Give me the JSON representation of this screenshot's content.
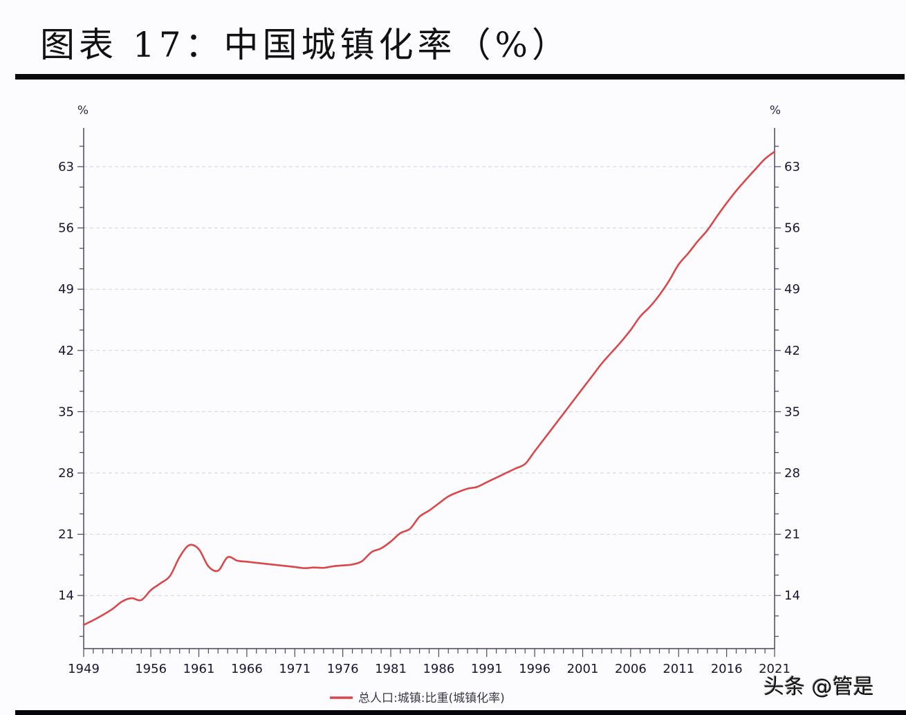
{
  "header": {
    "title": "图表 17：中国城镇化率（%）"
  },
  "watermark": "头条 @管是",
  "chart_data": {
    "type": "line",
    "title": "图表 17：中国城镇化率（%）",
    "xlabel": "",
    "ylabel_left": "%",
    "ylabel_right": "%",
    "ylim": [
      7.3,
      66.8
    ],
    "xlim": [
      1949,
      2021
    ],
    "y_ticks": [
      14,
      21,
      28,
      35,
      42,
      49,
      56,
      63
    ],
    "y_minor_step": 2.333,
    "x_tick_labels": [
      "1949",
      "1956",
      "1961",
      "1966",
      "1971",
      "1976",
      "1981",
      "1986",
      "1991",
      "1996",
      "2001",
      "2006",
      "2011",
      "2016",
      "2021"
    ],
    "grid": "horizontal dashed at major y ticks",
    "legend_position": "bottom-center",
    "line_color": "#d9474a",
    "series": [
      {
        "name": "总人口:城镇:比重(城镇化率)",
        "x": [
          1949,
          1950,
          1951,
          1952,
          1953,
          1954,
          1955,
          1956,
          1957,
          1958,
          1959,
          1960,
          1961,
          1962,
          1963,
          1964,
          1965,
          1966,
          1967,
          1968,
          1969,
          1970,
          1971,
          1972,
          1973,
          1974,
          1975,
          1976,
          1977,
          1978,
          1979,
          1980,
          1981,
          1982,
          1983,
          1984,
          1985,
          1986,
          1987,
          1988,
          1989,
          1990,
          1991,
          1992,
          1993,
          1994,
          1995,
          1996,
          1997,
          1998,
          1999,
          2000,
          2001,
          2002,
          2003,
          2004,
          2005,
          2006,
          2007,
          2008,
          2009,
          2010,
          2011,
          2012,
          2013,
          2014,
          2015,
          2016,
          2017,
          2018,
          2019,
          2020,
          2021
        ],
        "values": [
          10.64,
          11.18,
          11.78,
          12.46,
          13.31,
          13.69,
          13.48,
          14.62,
          15.39,
          16.25,
          18.41,
          19.75,
          19.29,
          17.33,
          16.84,
          18.37,
          17.98,
          17.86,
          17.74,
          17.62,
          17.5,
          17.38,
          17.26,
          17.13,
          17.2,
          17.16,
          17.34,
          17.44,
          17.55,
          17.92,
          18.96,
          19.39,
          20.16,
          21.13,
          21.62,
          23.01,
          23.71,
          24.52,
          25.32,
          25.81,
          26.21,
          26.41,
          26.94,
          27.46,
          27.99,
          28.51,
          29.04,
          30.48,
          31.91,
          33.35,
          34.78,
          36.22,
          37.66,
          39.09,
          40.53,
          41.76,
          42.99,
          44.34,
          45.89,
          46.99,
          48.34,
          49.95,
          51.83,
          53.1,
          54.49,
          55.75,
          57.33,
          58.84,
          60.24,
          61.5,
          62.71,
          63.89,
          64.72
        ]
      }
    ]
  },
  "colors": {
    "line": "#d9474a",
    "axis": "#4a4560",
    "grid": "#c9d3e6",
    "text": "#1a1530"
  }
}
